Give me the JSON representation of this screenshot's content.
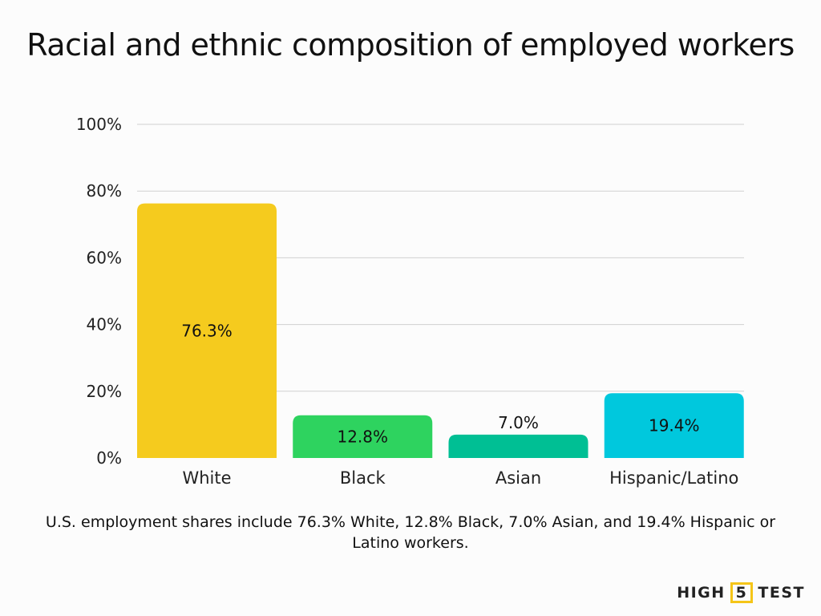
{
  "chart_data": {
    "type": "bar",
    "title": "Racial and ethnic composition of employed workers",
    "categories": [
      "White",
      "Black",
      "Asian",
      "Hispanic/Latino"
    ],
    "values": [
      76.3,
      12.8,
      7.0,
      19.4
    ],
    "data_labels": [
      "76.3%",
      "12.8%",
      "7.0%",
      "19.4%"
    ],
    "colors": [
      "#F5CB1E",
      "#2ED35F",
      "#00BF94",
      "#00C8DD"
    ],
    "xlabel": "",
    "ylabel": "",
    "ylim": [
      0,
      100
    ],
    "yticks": [
      0,
      20,
      40,
      60,
      80,
      100
    ],
    "ytick_labels": [
      "0%",
      "20%",
      "40%",
      "60%",
      "80%",
      "100%"
    ],
    "grid": true,
    "legend": "none"
  },
  "caption": "U.S. employment shares include 76.3% White, 12.8% Black, 7.0% Asian, and 19.4% Hispanic or Latino workers.",
  "logo": {
    "left": "HIGH",
    "mid": "5",
    "right": "TEST"
  }
}
